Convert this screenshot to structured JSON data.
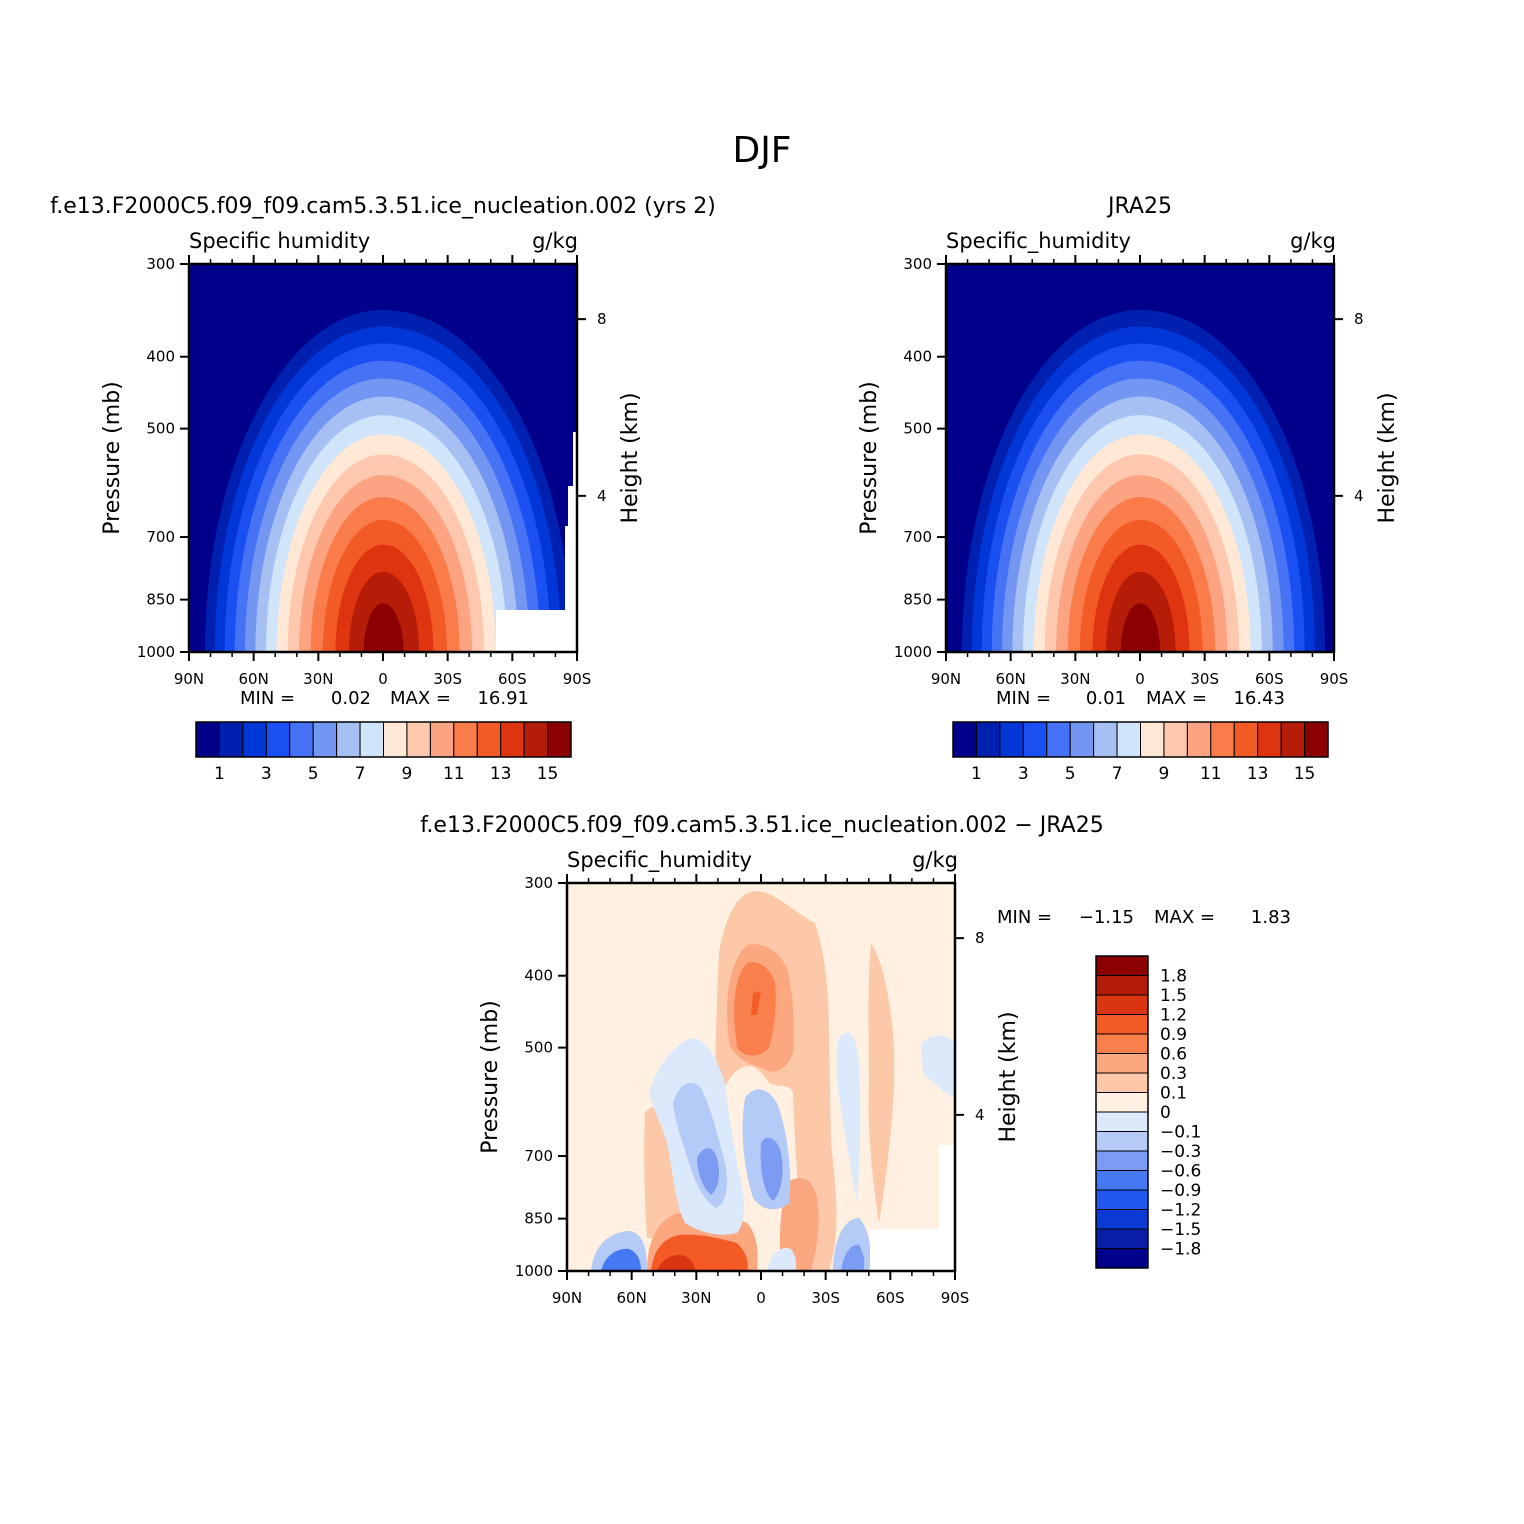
{
  "figure_title": "DJF",
  "colors": {
    "seq": [
      "#00008b",
      "#0020b0",
      "#0037d6",
      "#1a4ff2",
      "#4673f5",
      "#7296f2",
      "#a6c0f4",
      "#d0e4fa",
      "#ffe8d6",
      "#fdc8ad",
      "#fca482",
      "#fa7c4a",
      "#f25a26",
      "#de3510",
      "#b51d08",
      "#8b0000"
    ],
    "div": [
      "#00008b",
      "#0a1fa8",
      "#0a3ad3",
      "#1f57ef",
      "#4778f4",
      "#7c9bf3",
      "#b3cbf6",
      "#dce9fb",
      "#fff0e1",
      "#fcc8a8",
      "#fba77f",
      "#f97f4c",
      "#f35a26",
      "#db3410",
      "#b11b07",
      "#8b0000"
    ]
  },
  "chart_data": [
    {
      "type": "contour",
      "panel_title": "f.e13.F2000C5.f09_f09.cam5.3.51.ice_nucleation.002 (yrs 2)",
      "left_label": "Specific humidity",
      "units": "g/kg",
      "ylabel": "Pressure (mb)",
      "ylabel_right": "Height (km)",
      "x_ticks": [
        "90N",
        "60N",
        "30N",
        "0",
        "30S",
        "60S",
        "90S"
      ],
      "y_ticks": [
        "300",
        "400",
        "500",
        "700",
        "850",
        "1000"
      ],
      "y_ticks_right": [
        "8",
        "4"
      ],
      "stats": {
        "min_label": "MIN =",
        "min": "0.02",
        "max_label": "MAX =",
        "max": "16.91"
      },
      "colorbar_labels": [
        "1",
        "3",
        "5",
        "7",
        "9",
        "11",
        "13",
        "15"
      ],
      "peak_latitude": 0,
      "max_value": 16.91
    },
    {
      "type": "contour",
      "panel_title": "JRA25",
      "left_label": "Specific_humidity",
      "units": "g/kg",
      "ylabel": "Pressure (mb)",
      "ylabel_right": "Height (km)",
      "x_ticks": [
        "90N",
        "60N",
        "30N",
        "0",
        "30S",
        "60S",
        "90S"
      ],
      "y_ticks": [
        "300",
        "400",
        "500",
        "700",
        "850",
        "1000"
      ],
      "y_ticks_right": [
        "8",
        "4"
      ],
      "stats": {
        "min_label": "MIN =",
        "min": "0.01",
        "max_label": "MAX =",
        "max": "16.43"
      },
      "colorbar_labels": [
        "1",
        "3",
        "5",
        "7",
        "9",
        "11",
        "13",
        "15"
      ],
      "peak_latitude": 0,
      "max_value": 16.43
    },
    {
      "type": "contour",
      "panel_title": "f.e13.F2000C5.f09_f09.cam5.3.51.ice_nucleation.002 − JRA25",
      "left_label": "Specific_humidity",
      "units": "g/kg",
      "ylabel": "Pressure (mb)",
      "ylabel_right": "Height (km)",
      "x_ticks": [
        "90N",
        "60N",
        "30N",
        "0",
        "30S",
        "60S",
        "90S"
      ],
      "y_ticks": [
        "300",
        "400",
        "500",
        "700",
        "850",
        "1000"
      ],
      "y_ticks_right": [
        "8",
        "4"
      ],
      "stats": {
        "min_label": "MIN =",
        "min": "−1.15",
        "max_label": "MAX =",
        "max": "1.83"
      },
      "colorbar_labels": [
        "1.8",
        "1.5",
        "1.2",
        "0.9",
        "0.6",
        "0.3",
        "0.1",
        "0",
        "−0.1",
        "−0.3",
        "−0.6",
        "−0.9",
        "−1.2",
        "−1.5",
        "−1.8"
      ]
    }
  ]
}
